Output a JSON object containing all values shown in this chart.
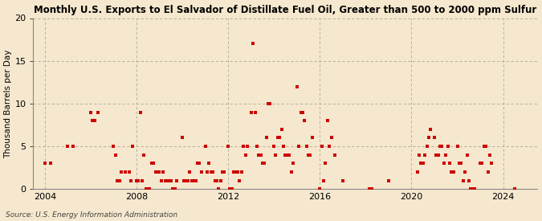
{
  "title": "Monthly U.S. Exports to El Salvador of Distillate Fuel Oil, Greater than 500 to 2000 ppm Sulfur",
  "ylabel": "Thousand Barrels per Day",
  "source": "Source: U.S. Energy Information Administration",
  "background_color": "#f5e8ce",
  "plot_background_color": "#f5e8ce",
  "marker_color": "#cc0000",
  "ylim": [
    0,
    20
  ],
  "yticks": [
    0,
    5,
    10,
    15,
    20
  ],
  "xlim_start": 2003.5,
  "xlim_end": 2025.5,
  "xticks": [
    2004,
    2008,
    2012,
    2016,
    2020,
    2024
  ],
  "data_points": [
    [
      2004.0,
      3.0
    ],
    [
      2004.25,
      3.0
    ],
    [
      2005.0,
      5.0
    ],
    [
      2005.25,
      5.0
    ],
    [
      2006.0,
      9.0
    ],
    [
      2006.08,
      8.0
    ],
    [
      2006.17,
      8.0
    ],
    [
      2006.33,
      9.0
    ],
    [
      2007.0,
      5.0
    ],
    [
      2007.08,
      4.0
    ],
    [
      2007.17,
      1.0
    ],
    [
      2007.25,
      1.0
    ],
    [
      2007.33,
      2.0
    ],
    [
      2007.5,
      2.0
    ],
    [
      2007.67,
      2.0
    ],
    [
      2007.75,
      1.0
    ],
    [
      2007.83,
      5.0
    ],
    [
      2008.0,
      1.0
    ],
    [
      2008.08,
      1.0
    ],
    [
      2008.17,
      9.0
    ],
    [
      2008.25,
      1.0
    ],
    [
      2008.33,
      4.0
    ],
    [
      2008.42,
      0.0
    ],
    [
      2008.5,
      0.0
    ],
    [
      2008.58,
      0.0
    ],
    [
      2008.67,
      3.0
    ],
    [
      2008.75,
      3.0
    ],
    [
      2008.83,
      2.0
    ],
    [
      2009.0,
      2.0
    ],
    [
      2009.08,
      1.0
    ],
    [
      2009.17,
      2.0
    ],
    [
      2009.25,
      1.0
    ],
    [
      2009.33,
      1.0
    ],
    [
      2009.42,
      1.0
    ],
    [
      2009.5,
      1.0
    ],
    [
      2009.58,
      0.0
    ],
    [
      2009.67,
      0.0
    ],
    [
      2009.75,
      1.0
    ],
    [
      2010.0,
      6.0
    ],
    [
      2010.08,
      1.0
    ],
    [
      2010.17,
      1.0
    ],
    [
      2010.25,
      1.0
    ],
    [
      2010.33,
      2.0
    ],
    [
      2010.42,
      1.0
    ],
    [
      2010.5,
      1.0
    ],
    [
      2010.58,
      1.0
    ],
    [
      2010.67,
      3.0
    ],
    [
      2010.75,
      3.0
    ],
    [
      2010.83,
      2.0
    ],
    [
      2011.0,
      5.0
    ],
    [
      2011.08,
      2.0
    ],
    [
      2011.17,
      3.0
    ],
    [
      2011.25,
      2.0
    ],
    [
      2011.33,
      2.0
    ],
    [
      2011.42,
      1.0
    ],
    [
      2011.5,
      1.0
    ],
    [
      2011.58,
      0.0
    ],
    [
      2011.67,
      1.0
    ],
    [
      2011.75,
      2.0
    ],
    [
      2011.83,
      2.0
    ],
    [
      2012.0,
      5.0
    ],
    [
      2012.08,
      0.0
    ],
    [
      2012.17,
      0.0
    ],
    [
      2012.25,
      2.0
    ],
    [
      2012.33,
      2.0
    ],
    [
      2012.42,
      2.0
    ],
    [
      2012.5,
      1.0
    ],
    [
      2012.58,
      2.0
    ],
    [
      2012.67,
      5.0
    ],
    [
      2012.75,
      4.0
    ],
    [
      2012.83,
      5.0
    ],
    [
      2013.0,
      9.0
    ],
    [
      2013.08,
      17.0
    ],
    [
      2013.17,
      9.0
    ],
    [
      2013.25,
      5.0
    ],
    [
      2013.33,
      4.0
    ],
    [
      2013.42,
      4.0
    ],
    [
      2013.5,
      3.0
    ],
    [
      2013.58,
      3.0
    ],
    [
      2013.67,
      6.0
    ],
    [
      2013.75,
      10.0
    ],
    [
      2013.83,
      10.0
    ],
    [
      2014.0,
      5.0
    ],
    [
      2014.08,
      4.0
    ],
    [
      2014.17,
      6.0
    ],
    [
      2014.25,
      6.0
    ],
    [
      2014.33,
      7.0
    ],
    [
      2014.42,
      5.0
    ],
    [
      2014.5,
      4.0
    ],
    [
      2014.58,
      4.0
    ],
    [
      2014.67,
      4.0
    ],
    [
      2014.75,
      2.0
    ],
    [
      2014.83,
      3.0
    ],
    [
      2015.0,
      12.0
    ],
    [
      2015.08,
      5.0
    ],
    [
      2015.17,
      9.0
    ],
    [
      2015.25,
      9.0
    ],
    [
      2015.33,
      8.0
    ],
    [
      2015.42,
      5.0
    ],
    [
      2015.5,
      4.0
    ],
    [
      2015.58,
      4.0
    ],
    [
      2015.67,
      6.0
    ],
    [
      2016.0,
      0.0
    ],
    [
      2016.08,
      5.0
    ],
    [
      2016.17,
      1.0
    ],
    [
      2016.25,
      3.0
    ],
    [
      2016.33,
      8.0
    ],
    [
      2016.42,
      5.0
    ],
    [
      2016.5,
      6.0
    ],
    [
      2016.67,
      4.0
    ],
    [
      2017.0,
      1.0
    ],
    [
      2018.17,
      0.0
    ],
    [
      2018.25,
      0.0
    ],
    [
      2019.0,
      1.0
    ],
    [
      2020.25,
      2.0
    ],
    [
      2020.33,
      4.0
    ],
    [
      2020.42,
      3.0
    ],
    [
      2020.5,
      3.0
    ],
    [
      2020.58,
      4.0
    ],
    [
      2020.67,
      5.0
    ],
    [
      2020.75,
      6.0
    ],
    [
      2020.83,
      7.0
    ],
    [
      2021.0,
      6.0
    ],
    [
      2021.08,
      4.0
    ],
    [
      2021.17,
      4.0
    ],
    [
      2021.25,
      5.0
    ],
    [
      2021.33,
      5.0
    ],
    [
      2021.42,
      3.0
    ],
    [
      2021.5,
      4.0
    ],
    [
      2021.58,
      5.0
    ],
    [
      2021.67,
      3.0
    ],
    [
      2021.75,
      2.0
    ],
    [
      2021.83,
      2.0
    ],
    [
      2022.0,
      5.0
    ],
    [
      2022.08,
      3.0
    ],
    [
      2022.17,
      3.0
    ],
    [
      2022.25,
      1.0
    ],
    [
      2022.33,
      2.0
    ],
    [
      2022.42,
      4.0
    ],
    [
      2022.5,
      1.0
    ],
    [
      2022.58,
      0.0
    ],
    [
      2022.67,
      0.0
    ],
    [
      2022.75,
      0.0
    ],
    [
      2023.0,
      3.0
    ],
    [
      2023.08,
      3.0
    ],
    [
      2023.17,
      5.0
    ],
    [
      2023.25,
      5.0
    ],
    [
      2023.33,
      2.0
    ],
    [
      2023.42,
      4.0
    ],
    [
      2023.5,
      3.0
    ],
    [
      2024.5,
      0.0
    ]
  ]
}
